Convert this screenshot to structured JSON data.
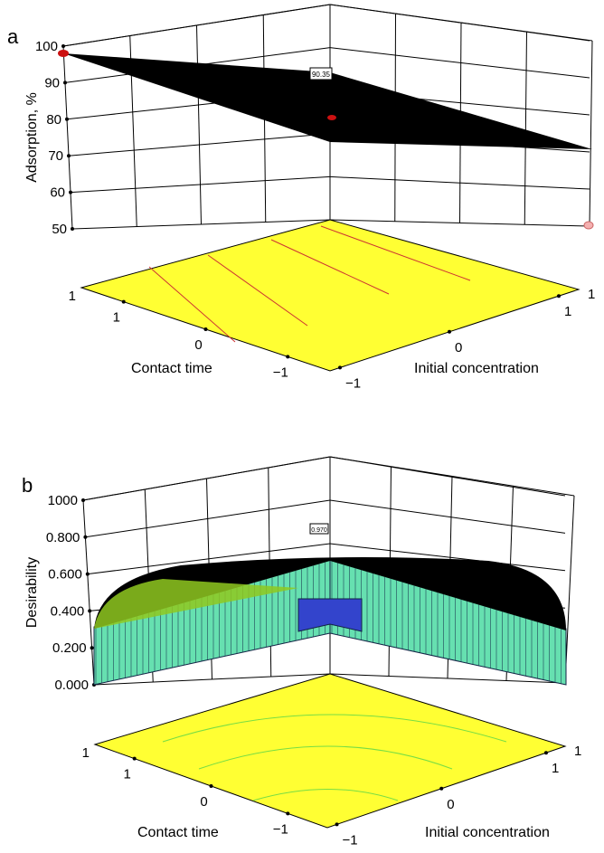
{
  "chart_data": [
    {
      "type": "surface3d",
      "panel_label": "a",
      "zlabel": "Adsorption, %",
      "xlabel": "Contact time",
      "ylabel": "Initial concentration",
      "zticks": [
        "100",
        "90",
        "80",
        "70",
        "60",
        "50"
      ],
      "zlim": [
        50,
        100
      ],
      "xticks": [
        "1",
        "0",
        "−1"
      ],
      "yticks": [
        "−1",
        "0",
        "1"
      ],
      "corner_label_left": "1",
      "corner_label_right": "1",
      "annotation": "90.35",
      "surface_color": "#000000",
      "floor_color": "#ffff33",
      "design_point_color": "#cc1111"
    },
    {
      "type": "surface3d",
      "panel_label": "b",
      "zlabel": "Desirability",
      "xlabel": "Contact time",
      "ylabel": "Initial concentration",
      "zticks": [
        "1000",
        "0.800",
        "0.600",
        "0.400",
        "0.200",
        "0.000"
      ],
      "zlim": [
        0,
        1
      ],
      "xticks": [
        "1",
        "0",
        "−1"
      ],
      "yticks": [
        "−1",
        "0",
        "1"
      ],
      "corner_label_left": "1",
      "corner_label_right": "1",
      "annotation": "0.970",
      "surface_color": "#66e0b0",
      "floor_color": "#ffff33",
      "highlight_color": "#3344cc"
    }
  ]
}
